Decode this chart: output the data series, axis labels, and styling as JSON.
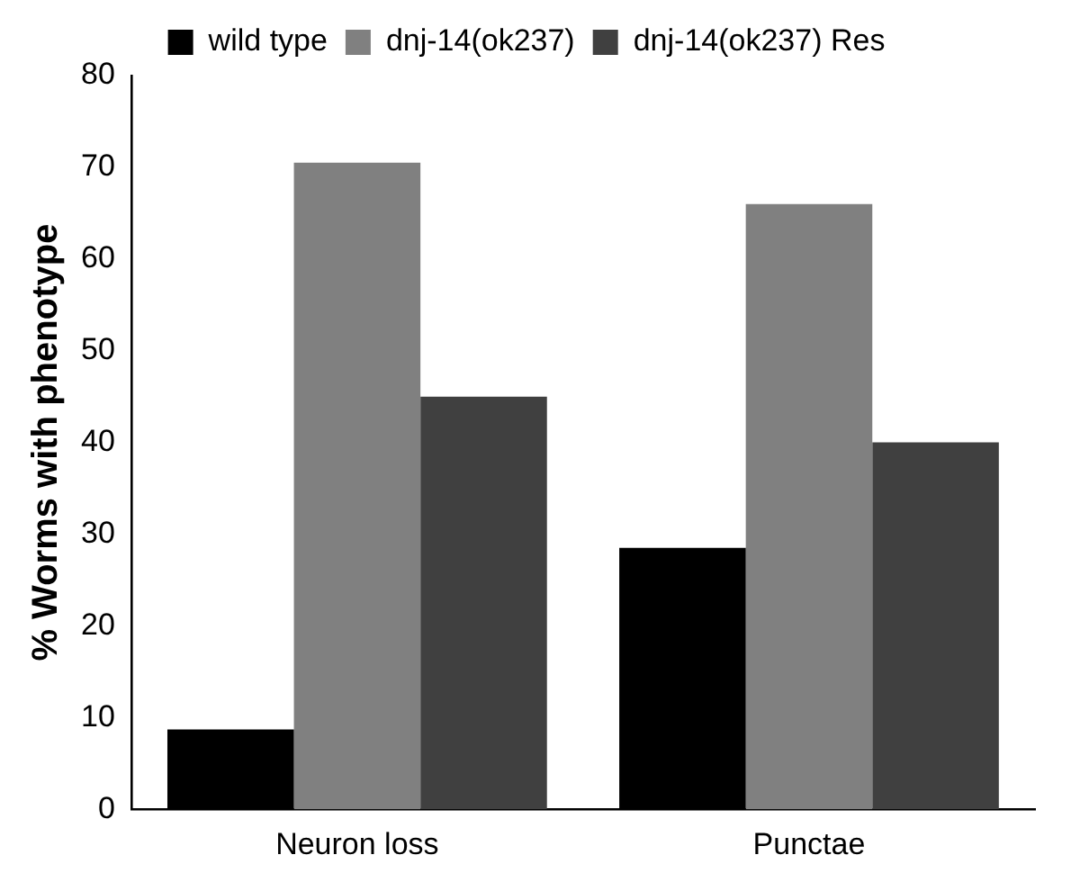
{
  "chart_data": {
    "type": "bar",
    "ylabel": "% Worms with phenotype",
    "categories": [
      "Neuron loss",
      "Punctae"
    ],
    "series": [
      {
        "name": "wild type",
        "color": "#000000",
        "values": [
          8.7,
          28.5
        ]
      },
      {
        "name": "dnj-14(ok237)",
        "color": "#808080",
        "values": [
          70.5,
          66
        ]
      },
      {
        "name": "dnj-14(ok237) Res",
        "color": "#404040",
        "values": [
          45,
          40
        ]
      }
    ],
    "ylim": [
      0,
      80
    ],
    "yticks": [
      0,
      10,
      20,
      30,
      40,
      50,
      60,
      70,
      80
    ],
    "grid": false,
    "legend": "top"
  }
}
